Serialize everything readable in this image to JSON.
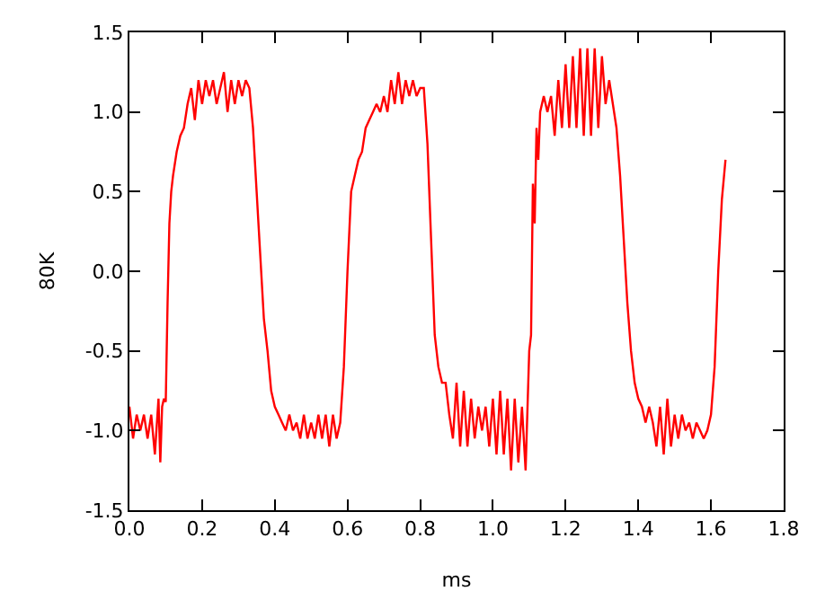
{
  "chart_data": {
    "type": "line",
    "xlabel": "ms",
    "ylabel": "80K",
    "xlim": [
      0,
      1.8
    ],
    "ylim": [
      -1.5,
      1.5
    ],
    "xticks": [
      {
        "value": 0,
        "label": "0.0"
      },
      0.2,
      0.4,
      0.6,
      0.8,
      {
        "value": 1,
        "label": "1.0"
      },
      1.2,
      1.4,
      1.6,
      1.8
    ],
    "yticks": [
      -1.5,
      {
        "value": -1,
        "label": "-1.0"
      },
      -0.5,
      {
        "value": 0,
        "label": "0.0"
      },
      0.5,
      {
        "value": 1,
        "label": "1.0"
      },
      1.5
    ],
    "legend": false,
    "marker": "none",
    "line_style": "solid",
    "series": [
      {
        "color": "#ff0000",
        "x": [
          0,
          0.01,
          0.02,
          0.03,
          0.04,
          0.05,
          0.06,
          0.07,
          0.08,
          0.085,
          0.09,
          0.095,
          0.1,
          0.105,
          0.11,
          0.115,
          0.12,
          0.13,
          0.14,
          0.15,
          0.16,
          0.17,
          0.18,
          0.19,
          0.2,
          0.21,
          0.22,
          0.23,
          0.24,
          0.25,
          0.26,
          0.27,
          0.28,
          0.29,
          0.3,
          0.31,
          0.32,
          0.33,
          0.34,
          0.35,
          0.36,
          0.37,
          0.38,
          0.39,
          0.4,
          0.41,
          0.42,
          0.43,
          0.44,
          0.45,
          0.46,
          0.47,
          0.48,
          0.49,
          0.5,
          0.51,
          0.52,
          0.53,
          0.54,
          0.55,
          0.56,
          0.57,
          0.58,
          0.59,
          0.6,
          0.61,
          0.62,
          0.63,
          0.64,
          0.65,
          0.66,
          0.67,
          0.68,
          0.69,
          0.7,
          0.71,
          0.72,
          0.73,
          0.74,
          0.75,
          0.76,
          0.77,
          0.78,
          0.79,
          0.8,
          0.81,
          0.82,
          0.83,
          0.84,
          0.85,
          0.86,
          0.87,
          0.88,
          0.89,
          0.9,
          0.91,
          0.92,
          0.93,
          0.94,
          0.95,
          0.96,
          0.97,
          0.98,
          0.99,
          1,
          1.01,
          1.02,
          1.03,
          1.04,
          1.05,
          1.06,
          1.07,
          1.08,
          1.09,
          1.1,
          1.105,
          1.11,
          1.115,
          1.12,
          1.125,
          1.13,
          1.14,
          1.15,
          1.16,
          1.17,
          1.18,
          1.19,
          1.2,
          1.21,
          1.22,
          1.23,
          1.24,
          1.25,
          1.26,
          1.27,
          1.28,
          1.29,
          1.3,
          1.31,
          1.32,
          1.33,
          1.34,
          1.35,
          1.36,
          1.37,
          1.38,
          1.39,
          1.4,
          1.41,
          1.42,
          1.43,
          1.44,
          1.45,
          1.46,
          1.47,
          1.48,
          1.49,
          1.5,
          1.51,
          1.52,
          1.53,
          1.54,
          1.55,
          1.56,
          1.57,
          1.58,
          1.59,
          1.6,
          1.61,
          1.62,
          1.63,
          1.64
        ],
        "values": [
          -0.85,
          -1.05,
          -0.9,
          -1.0,
          -0.9,
          -1.05,
          -0.9,
          -1.15,
          -0.8,
          -1.2,
          -0.85,
          -0.8,
          -0.82,
          -0.2,
          0.3,
          0.5,
          0.6,
          0.75,
          0.85,
          0.9,
          1.05,
          1.15,
          0.95,
          1.2,
          1.05,
          1.2,
          1.1,
          1.2,
          1.05,
          1.15,
          1.25,
          1.0,
          1.2,
          1.05,
          1.2,
          1.1,
          1.2,
          1.15,
          0.9,
          0.5,
          0.1,
          -0.3,
          -0.5,
          -0.75,
          -0.85,
          -0.9,
          -0.95,
          -1.0,
          -0.9,
          -1.0,
          -0.95,
          -1.05,
          -0.9,
          -1.05,
          -0.95,
          -1.05,
          -0.9,
          -1.05,
          -0.9,
          -1.1,
          -0.9,
          -1.05,
          -0.95,
          -0.6,
          0.0,
          0.5,
          0.6,
          0.7,
          0.75,
          0.9,
          0.95,
          1.0,
          1.05,
          1.0,
          1.1,
          1.0,
          1.2,
          1.05,
          1.25,
          1.05,
          1.2,
          1.1,
          1.2,
          1.1,
          1.15,
          1.15,
          0.8,
          0.2,
          -0.4,
          -0.6,
          -0.7,
          -0.7,
          -0.9,
          -1.05,
          -0.7,
          -1.1,
          -0.75,
          -1.1,
          -0.8,
          -1.05,
          -0.85,
          -1.0,
          -0.85,
          -1.1,
          -0.8,
          -1.15,
          -0.75,
          -1.15,
          -0.8,
          -1.25,
          -0.8,
          -1.2,
          -0.85,
          -1.25,
          -0.5,
          -0.4,
          0.55,
          0.3,
          0.9,
          0.7,
          1.0,
          1.1,
          1.0,
          1.1,
          0.85,
          1.2,
          0.9,
          1.3,
          0.9,
          1.35,
          0.9,
          1.4,
          0.85,
          1.4,
          0.85,
          1.4,
          0.9,
          1.35,
          1.05,
          1.2,
          1.05,
          0.9,
          0.6,
          0.2,
          -0.2,
          -0.5,
          -0.7,
          -0.8,
          -0.85,
          -0.95,
          -0.85,
          -0.95,
          -1.1,
          -0.85,
          -1.15,
          -0.8,
          -1.1,
          -0.9,
          -1.05,
          -0.9,
          -1.0,
          -0.95,
          -1.05,
          -0.95,
          -1.0,
          -1.05,
          -1.0,
          -0.9,
          -0.6,
          0.0,
          0.45,
          0.7
        ]
      }
    ]
  }
}
